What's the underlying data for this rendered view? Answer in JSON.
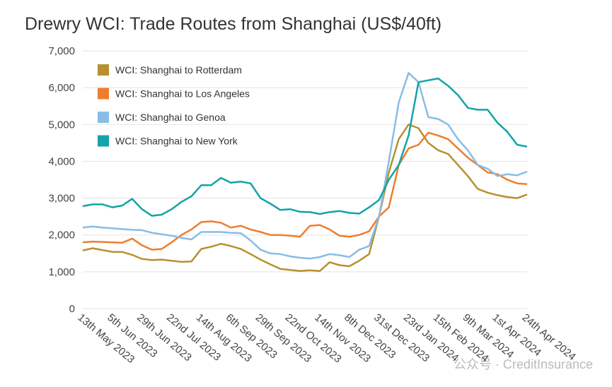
{
  "chart_data": {
    "type": "line",
    "title": "Drewry WCI: Trade Routes from Shanghai (US$/40ft)",
    "watermark": "公众号 · CreditInsurance",
    "categories": [
      "13th May 2023",
      null,
      null,
      "5th Jun 2023",
      null,
      null,
      "29th Jun 2023",
      null,
      null,
      "22nd Jul 2023",
      null,
      null,
      "14th Aug 2023",
      null,
      null,
      "6th Sep 2023",
      null,
      null,
      "29th Sep 2023",
      null,
      null,
      "22nd Oct 2023",
      null,
      null,
      "14th Nov 2023",
      null,
      null,
      "8th Dec 2023",
      null,
      null,
      "31st Dec 2023",
      null,
      null,
      "23rd Jan 2024",
      null,
      null,
      "15th Feb 2024",
      null,
      null,
      "9th Mar 2024",
      null,
      null,
      "1st Apr 2024",
      null,
      null,
      "24th Apr 2024"
    ],
    "series": [
      {
        "name": "WCI: Shanghai to Rotterdam",
        "color": "#b8902e",
        "values": [
          1580,
          1640,
          1590,
          1540,
          1540,
          1460,
          1350,
          1320,
          1330,
          1300,
          1270,
          1280,
          1620,
          1680,
          1760,
          1700,
          1620,
          1480,
          1330,
          1200,
          1080,
          1050,
          1020,
          1040,
          1020,
          1260,
          1180,
          1150,
          1300,
          1480,
          2500,
          3700,
          4600,
          5000,
          4900,
          4500,
          4300,
          4200,
          3900,
          3600,
          3250,
          3150,
          3080,
          3030,
          3000,
          3100
        ]
      },
      {
        "name": "WCI: Shanghai to Los Angeles",
        "color": "#ef7d2d",
        "values": [
          1800,
          1820,
          1810,
          1800,
          1790,
          1900,
          1720,
          1600,
          1620,
          1800,
          2000,
          2150,
          2350,
          2370,
          2330,
          2200,
          2250,
          2150,
          2080,
          2000,
          2000,
          1980,
          1950,
          2250,
          2270,
          2150,
          1980,
          1950,
          2000,
          2100,
          2500,
          2750,
          3900,
          4350,
          4450,
          4780,
          4700,
          4600,
          4350,
          4100,
          3900,
          3700,
          3650,
          3500,
          3400,
          3380
        ]
      },
      {
        "name": "WCI: Shanghai to Genoa",
        "color": "#88bde6",
        "values": [
          2200,
          2230,
          2200,
          2180,
          2160,
          2140,
          2130,
          2060,
          2020,
          1980,
          1920,
          1880,
          2080,
          2080,
          2080,
          2060,
          2050,
          1850,
          1600,
          1500,
          1480,
          1420,
          1380,
          1360,
          1400,
          1480,
          1450,
          1400,
          1600,
          1700,
          2500,
          4000,
          5600,
          6400,
          6150,
          5200,
          5150,
          5000,
          4600,
          4300,
          3900,
          3800,
          3600,
          3650,
          3620,
          3720
        ]
      },
      {
        "name": "WCI: Shanghai to New York",
        "color": "#13a3a8",
        "values": [
          2780,
          2830,
          2830,
          2750,
          2800,
          2980,
          2700,
          2520,
          2550,
          2700,
          2900,
          3050,
          3350,
          3350,
          3550,
          3420,
          3450,
          3400,
          3000,
          2850,
          2680,
          2700,
          2630,
          2620,
          2570,
          2620,
          2650,
          2600,
          2580,
          2750,
          2950,
          3500,
          3900,
          4700,
          6150,
          6200,
          6250,
          6050,
          5800,
          5450,
          5400,
          5400,
          5050,
          4800,
          4450,
          4400
        ]
      }
    ],
    "ylim": [
      0,
      7000
    ],
    "yticks": [
      0,
      {
        "value": 1000,
        "label": "1,000"
      },
      {
        "value": 2000,
        "label": "2,000"
      },
      {
        "value": 3000,
        "label": "3,000"
      },
      {
        "value": 4000,
        "label": "4,000"
      },
      {
        "value": 5000,
        "label": "5,000"
      },
      {
        "value": 6000,
        "label": "6,000"
      },
      {
        "value": 7000,
        "label": "7,000"
      }
    ],
    "grid": true,
    "legend": "top-left"
  }
}
